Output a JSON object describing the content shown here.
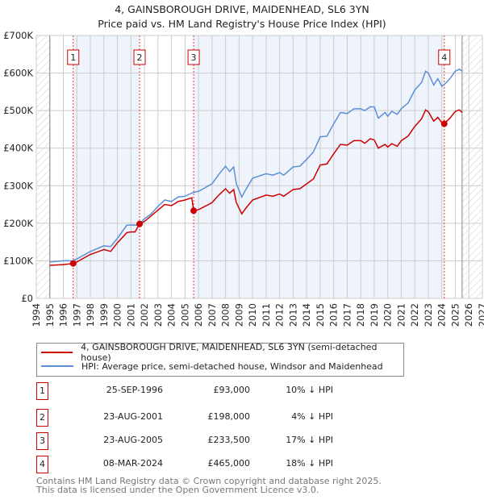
{
  "chart_data": {
    "type": "line",
    "title": "4, GAINSBOROUGH DRIVE, MAIDENHEAD, SL6 3YN",
    "subtitle": "Price paid vs. HM Land Registry's House Price Index (HPI)",
    "xlim": [
      1994,
      2027
    ],
    "ylim": [
      0,
      700000
    ],
    "x_ticks": [
      "1994",
      "1995",
      "1996",
      "1997",
      "1998",
      "1999",
      "2000",
      "2001",
      "2002",
      "2003",
      "2004",
      "2005",
      "2006",
      "2007",
      "2008",
      "2009",
      "2010",
      "2011",
      "2012",
      "2013",
      "2014",
      "2015",
      "2016",
      "2017",
      "2018",
      "2019",
      "2020",
      "2021",
      "2022",
      "2023",
      "2024",
      "2025",
      "2026",
      "2027"
    ],
    "y_ticks": [
      {
        "v": 0,
        "label": "£0"
      },
      {
        "v": 100000,
        "label": "£100K"
      },
      {
        "v": 200000,
        "label": "£200K"
      },
      {
        "v": 300000,
        "label": "£300K"
      },
      {
        "v": 400000,
        "label": "£400K"
      },
      {
        "v": 500000,
        "label": "£500K"
      },
      {
        "v": 600000,
        "label": "£600K"
      },
      {
        "v": 700000,
        "label": "£700K"
      }
    ],
    "data_range": [
      1995,
      2025.5
    ],
    "series": [
      {
        "name": "4, GAINSBOROUGH DRIVE, MAIDENHEAD, SL6 3YN (semi-detached house)",
        "color": "#cc0000",
        "points": [
          [
            1995,
            88
          ],
          [
            1996,
            90
          ],
          [
            1996.73,
            93
          ],
          [
            1997,
            97
          ],
          [
            1998,
            117
          ],
          [
            1999,
            130
          ],
          [
            1999.5,
            125
          ],
          [
            2000,
            148
          ],
          [
            2000.7,
            175
          ],
          [
            2001,
            177
          ],
          [
            2001.3,
            177
          ],
          [
            2001.64,
            198
          ],
          [
            2002,
            205
          ],
          [
            2003,
            235
          ],
          [
            2003.5,
            250
          ],
          [
            2004,
            247
          ],
          [
            2004.5,
            258
          ],
          [
            2005,
            262
          ],
          [
            2005.5,
            268
          ],
          [
            2005.64,
            233.5
          ],
          [
            2006,
            236
          ],
          [
            2007,
            255
          ],
          [
            2007.5,
            275
          ],
          [
            2008,
            292
          ],
          [
            2008.3,
            280
          ],
          [
            2008.6,
            290
          ],
          [
            2008.8,
            255
          ],
          [
            2009.2,
            225
          ],
          [
            2009.5,
            240
          ],
          [
            2010,
            262
          ],
          [
            2011,
            275
          ],
          [
            2011.5,
            272
          ],
          [
            2012,
            278
          ],
          [
            2012.3,
            272
          ],
          [
            2013,
            290
          ],
          [
            2013.5,
            292
          ],
          [
            2014,
            305
          ],
          [
            2014.5,
            318
          ],
          [
            2015,
            355
          ],
          [
            2015.5,
            358
          ],
          [
            2016,
            385
          ],
          [
            2016.5,
            410
          ],
          [
            2017,
            408
          ],
          [
            2017.5,
            420
          ],
          [
            2018,
            420
          ],
          [
            2018.3,
            413
          ],
          [
            2018.7,
            425
          ],
          [
            2019,
            422
          ],
          [
            2019.3,
            400
          ],
          [
            2019.8,
            410
          ],
          [
            2020,
            403
          ],
          [
            2020.3,
            412
          ],
          [
            2020.7,
            405
          ],
          [
            2021,
            420
          ],
          [
            2021.5,
            432
          ],
          [
            2022,
            458
          ],
          [
            2022.5,
            478
          ],
          [
            2022.8,
            502
          ],
          [
            2023,
            497
          ],
          [
            2023.4,
            472
          ],
          [
            2023.7,
            482
          ],
          [
            2024,
            468
          ],
          [
            2024.18,
            465
          ],
          [
            2024.6,
            480
          ],
          [
            2025,
            498
          ],
          [
            2025.3,
            502
          ],
          [
            2025.5,
            495
          ]
        ]
      },
      {
        "name": "HPI: Average price, semi-detached house, Windsor and Maidenhead",
        "color": "#5b8fd4",
        "points": [
          [
            1995,
            97
          ],
          [
            1996,
            100
          ],
          [
            1996.7,
            100
          ],
          [
            1997,
            105
          ],
          [
            1998,
            125
          ],
          [
            1999,
            140
          ],
          [
            1999.5,
            138
          ],
          [
            2000,
            160
          ],
          [
            2000.7,
            195
          ],
          [
            2001,
            195
          ],
          [
            2001.5,
            195
          ],
          [
            2002,
            212
          ],
          [
            2002.5,
            225
          ],
          [
            2003,
            245
          ],
          [
            2003.5,
            262
          ],
          [
            2004,
            258
          ],
          [
            2004.5,
            270
          ],
          [
            2005,
            272
          ],
          [
            2005.6,
            282
          ],
          [
            2006,
            285
          ],
          [
            2007,
            305
          ],
          [
            2007.5,
            330
          ],
          [
            2008,
            352
          ],
          [
            2008.3,
            338
          ],
          [
            2008.6,
            350
          ],
          [
            2008.8,
            305
          ],
          [
            2009.2,
            270
          ],
          [
            2009.5,
            290
          ],
          [
            2010,
            320
          ],
          [
            2011,
            332
          ],
          [
            2011.5,
            328
          ],
          [
            2012,
            335
          ],
          [
            2012.3,
            328
          ],
          [
            2013,
            350
          ],
          [
            2013.5,
            352
          ],
          [
            2014,
            370
          ],
          [
            2014.5,
            390
          ],
          [
            2015,
            430
          ],
          [
            2015.5,
            432
          ],
          [
            2016,
            465
          ],
          [
            2016.5,
            495
          ],
          [
            2017,
            492
          ],
          [
            2017.5,
            505
          ],
          [
            2018,
            505
          ],
          [
            2018.3,
            500
          ],
          [
            2018.7,
            510
          ],
          [
            2019,
            510
          ],
          [
            2019.3,
            480
          ],
          [
            2019.8,
            495
          ],
          [
            2020,
            485
          ],
          [
            2020.3,
            498
          ],
          [
            2020.7,
            490
          ],
          [
            2021,
            505
          ],
          [
            2021.5,
            520
          ],
          [
            2022,
            555
          ],
          [
            2022.5,
            575
          ],
          [
            2022.8,
            605
          ],
          [
            2023,
            600
          ],
          [
            2023.4,
            568
          ],
          [
            2023.7,
            585
          ],
          [
            2024,
            565
          ],
          [
            2024.2,
            570
          ],
          [
            2024.6,
            585
          ],
          [
            2025,
            605
          ],
          [
            2025.3,
            610
          ],
          [
            2025.5,
            605
          ]
        ]
      }
    ],
    "sales": [
      {
        "label": "1",
        "x": 1996.73,
        "price": 93000
      },
      {
        "label": "2",
        "x": 2001.64,
        "price": 198000
      },
      {
        "label": "3",
        "x": 2005.64,
        "price": 233500
      },
      {
        "label": "4",
        "x": 2024.18,
        "price": 465000
      }
    ]
  },
  "legend": {
    "property": "4, GAINSBOROUGH DRIVE, MAIDENHEAD, SL6 3YN (semi-detached house)",
    "hpi": "HPI: Average price, semi-detached house, Windsor and Maidenhead"
  },
  "transactions": [
    {
      "num": "1",
      "date": "25-SEP-1996",
      "price": "£93,000",
      "pct": "10% ↓ HPI"
    },
    {
      "num": "2",
      "date": "23-AUG-2001",
      "price": "£198,000",
      "pct": "4% ↓ HPI"
    },
    {
      "num": "3",
      "date": "23-AUG-2005",
      "price": "£233,500",
      "pct": "17% ↓ HPI"
    },
    {
      "num": "4",
      "date": "08-MAR-2024",
      "price": "£465,000",
      "pct": "18% ↓ HPI"
    }
  ],
  "footer": {
    "line1": "Contains HM Land Registry data © Crown copyright and database right 2025.",
    "line2": "This data is licensed under the Open Government Licence v3.0."
  }
}
